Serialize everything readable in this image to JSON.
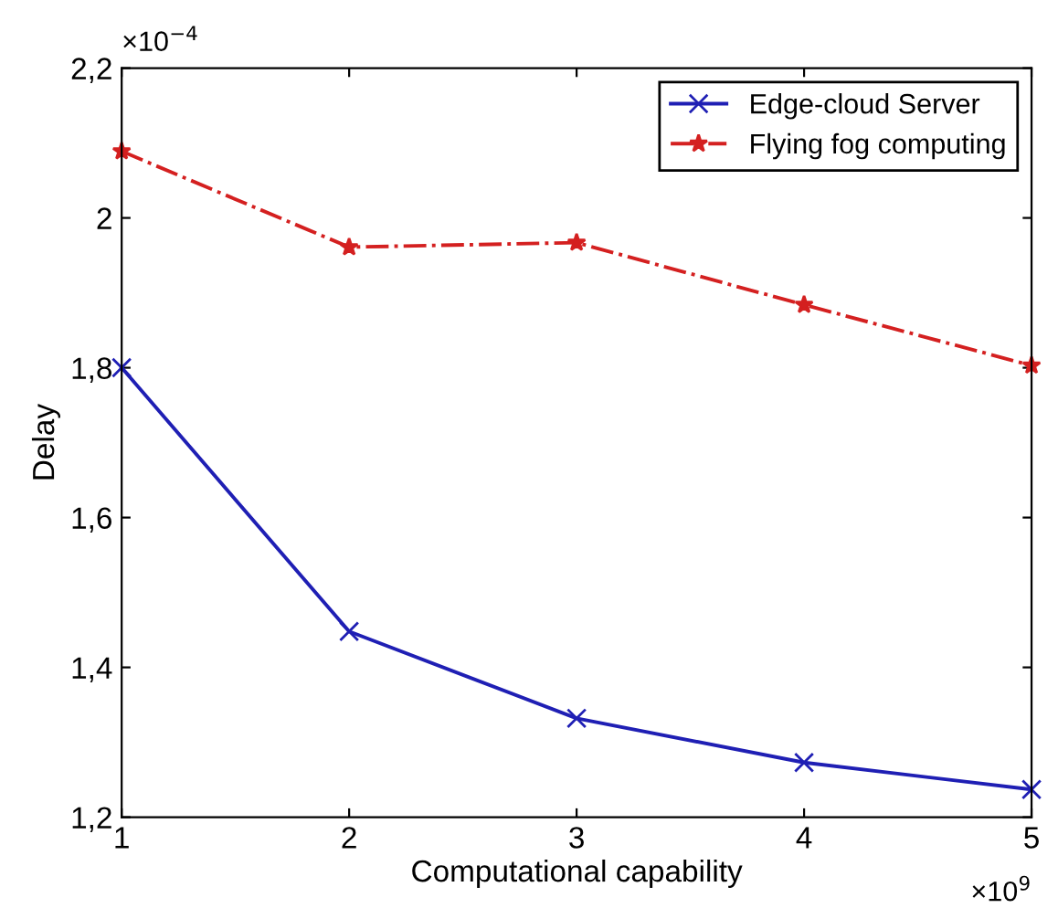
{
  "chart_data": {
    "type": "line",
    "xlabel": "Computational capability",
    "ylabel": "Delay",
    "x": [
      1,
      2,
      3,
      4,
      5
    ],
    "series": [
      {
        "name": "Edge-cloud Server",
        "color": "#1f1fb4",
        "values": [
          1.8,
          1.448,
          1.332,
          1.273,
          1.237
        ],
        "marker": "cross",
        "line_style": "solid"
      },
      {
        "name": "Flying fog computing",
        "color": "#d42020",
        "values": [
          2.089,
          1.961,
          1.967,
          1.884,
          1.803
        ],
        "marker": "star",
        "line_style": "dashdot"
      }
    ],
    "xlim": [
      1,
      5
    ],
    "xticks": [
      1,
      2,
      3,
      4,
      5
    ],
    "ylim": [
      1.2,
      2.2
    ],
    "yticks": [
      {
        "value": 1.2,
        "label": "1,2"
      },
      {
        "value": 1.4,
        "label": "1,4"
      },
      {
        "value": 1.6,
        "label": "1,6"
      },
      {
        "value": 1.8,
        "label": "1,8"
      },
      {
        "value": 2.0,
        "label": "2"
      },
      {
        "value": 2.2,
        "label": "2,2"
      }
    ],
    "annotations": [
      "×10$^{−4}$",
      "×10$^{9}$"
    ],
    "grid": false,
    "legend": "top right"
  }
}
